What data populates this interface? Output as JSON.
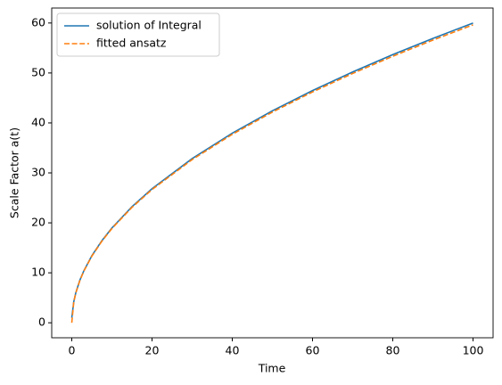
{
  "chart_data": {
    "type": "line",
    "xlabel": "Time",
    "ylabel": "Scale Factor a(t)",
    "x": [
      0,
      0.5,
      1,
      2,
      3,
      5,
      7.5,
      10,
      15,
      20,
      30,
      40,
      50,
      60,
      70,
      80,
      90,
      100
    ],
    "series": [
      {
        "name": "solution of Integral",
        "color": "#1f77b4",
        "style": "solid",
        "values": [
          1,
          4.24,
          6,
          8.49,
          10.39,
          13.42,
          16.43,
          18.97,
          23.24,
          26.83,
          32.86,
          37.95,
          42.43,
          46.48,
          50.2,
          53.67,
          56.92,
          60
        ]
      },
      {
        "name": "fitted ansatz",
        "color": "#ff7f0e",
        "style": "dashed",
        "values": [
          0,
          4.2,
          5.96,
          8.44,
          10.33,
          13.34,
          16.33,
          18.86,
          23.1,
          26.67,
          32.66,
          37.72,
          42.17,
          46.2,
          49.9,
          53.35,
          56.58,
          59.64
        ]
      }
    ],
    "xlim": [
      -5,
      105
    ],
    "ylim": [
      -3,
      63
    ],
    "xticks": [
      0,
      20,
      40,
      60,
      80,
      100
    ],
    "yticks": [
      0,
      10,
      20,
      30,
      40,
      50,
      60
    ],
    "legend": "upper-left"
  }
}
